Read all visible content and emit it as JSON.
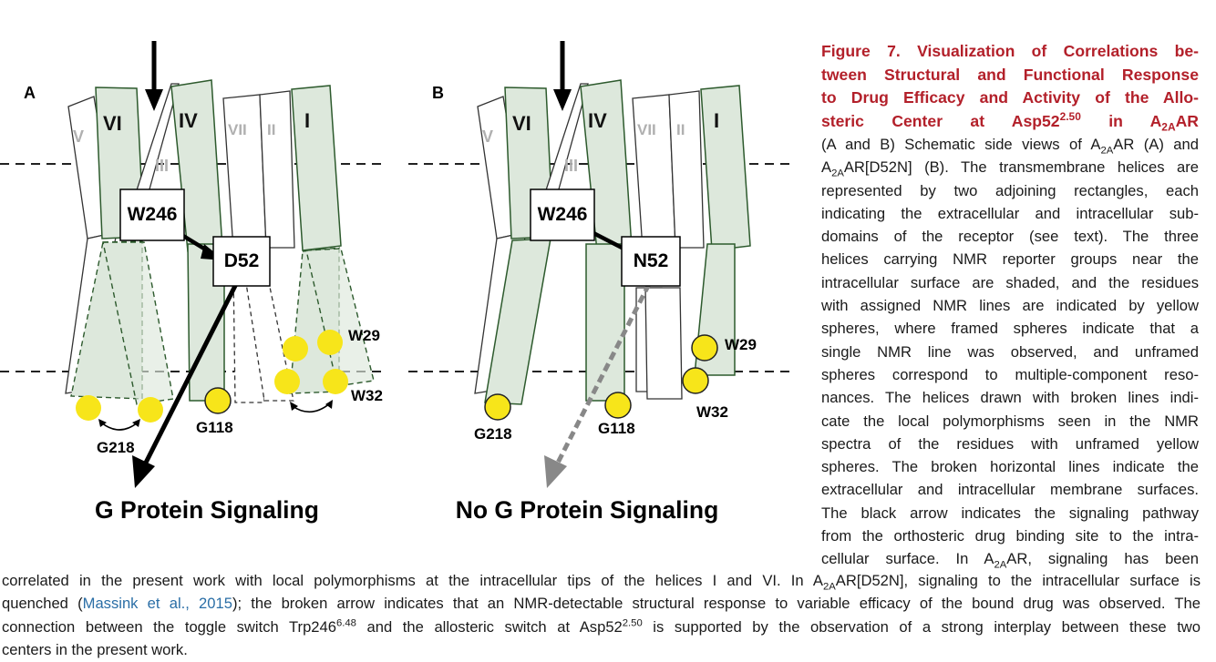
{
  "panel_a": {
    "letter": "A",
    "helices": [
      "V",
      "VI",
      "IV",
      "VII",
      "II",
      "I",
      "III"
    ],
    "residue_box_1": "W246",
    "residue_box_2": "D52",
    "residue_labels": {
      "w29": "W29",
      "w32": "W32",
      "g218": "G218",
      "g118": "G118"
    },
    "signal_label": "G Protein Signaling"
  },
  "panel_b": {
    "letter": "B",
    "helices": [
      "V",
      "VI",
      "IV",
      "VII",
      "II",
      "I",
      "III"
    ],
    "residue_box_1": "W246",
    "residue_box_2": "N52",
    "residue_labels": {
      "w29": "W29",
      "w32": "W32",
      "g218": "G218",
      "g118": "G118"
    },
    "signal_label": "No G Protein Signaling"
  },
  "colors": {
    "shaded_helix": "#dde8dc",
    "helix_outline": "#2d5a2d",
    "sphere": "#f7e51a",
    "title": "#b3202a",
    "link": "#2a6ea6",
    "broken_arrow": "#8a8a8a"
  },
  "caption": {
    "title_l1": "Figure 7. Visualization of Correlations be-",
    "title_l2": "tween Structural and Functional Response",
    "title_l3": "to Drug Efficacy and Activity of the Allo-",
    "title_l4a": "steric Center at Asp52",
    "title_l4_sup": "2.50",
    "title_l4b": " in A",
    "title_l4_sub": "2A",
    "title_l4c": "AR",
    "b1a": "(A and B) Schematic side views of A",
    "b1_sub": "2A",
    "b1b": "AR (A) and",
    "b2a": "A",
    "b2_sub": "2A",
    "b2b": "AR[D52N] (B). The transmembrane helices are",
    "b3": "represented by two adjoining rectangles, each",
    "b4": "indicating the extracellular and intracellular sub-",
    "b5": "domains of the receptor (see text). The three",
    "b6": "helices carrying NMR reporter groups near the",
    "b7": "intracellular surface are shaded, and the residues",
    "b8": "with assigned NMR lines are indicated by yellow",
    "b9": "spheres, where framed spheres indicate that a",
    "b10": "single NMR line was observed, and unframed",
    "b11": "spheres correspond to multiple-component reso-",
    "b12": "nances. The helices drawn with broken lines indi-",
    "b13": "cate the local polymorphisms seen in the NMR",
    "b14": "spectra of the residues with unframed yellow",
    "b15": "spheres. The broken horizontal lines indicate the",
    "b16": "extracellular and intracellular membrane surfaces.",
    "b17": "The black arrow indicates the signaling pathway",
    "b18": "from the orthosteric drug binding site to the intra-",
    "b19a": "cellular surface. In A",
    "b19_sub": "2A",
    "b19b": "AR, signaling has been",
    "f1a": "correlated in the present work with local polymorphisms at the intracellular tips of the helices I and VI. In A",
    "f1_sub": "2A",
    "f1b": "AR[D52N], signaling to the intracellular surface is",
    "f2a": "quenched (",
    "f2_link": "Massink et al., 2015",
    "f2b": "); the broken arrow indicates that an NMR-detectable structural response to variable efficacy of the bound drug was observed. The",
    "f3a": "connection between the toggle switch Trp246",
    "f3_sup1": "6.48",
    "f3b": " and the allosteric switch at Asp52",
    "f3_sup2": "2.50",
    "f3c": " is supported by the observation of a strong interplay between these two",
    "f4": "centers in the present work."
  }
}
